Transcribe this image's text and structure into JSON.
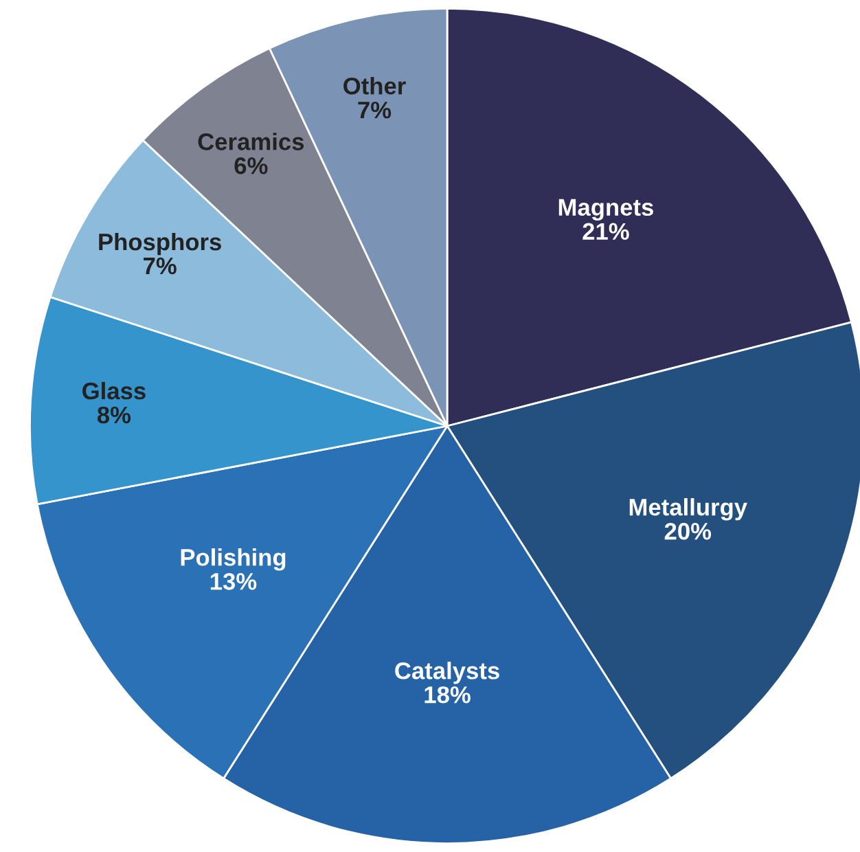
{
  "chart_data": {
    "type": "pie",
    "categories": [
      "Magnets",
      "Metallurgy",
      "Catalysts",
      "Polishing",
      "Glass",
      "Phosphors",
      "Ceramics",
      "Other"
    ],
    "values": [
      21,
      20,
      18,
      13,
      8,
      7,
      6,
      7
    ],
    "colors": [
      "#302d57",
      "#24507f",
      "#2563a6",
      "#2a72b5",
      "#3594cc",
      "#8dbbdb",
      "#7f8290",
      "#7b93b5"
    ],
    "value_labels": [
      "21%",
      "20%",
      "18%",
      "13%",
      "8%",
      "7%",
      "6%",
      "7%"
    ]
  }
}
